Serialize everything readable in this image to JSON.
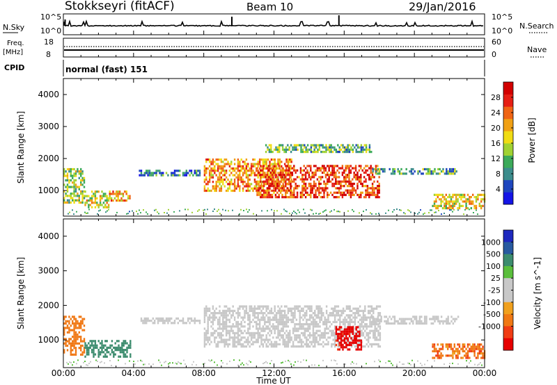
{
  "header": {
    "station": "Stokkseyri (fitACF)",
    "beam": "Beam 10",
    "date": "29/Jan/2016"
  },
  "nsky_panel": {
    "label": "N.Sky",
    "y_ticks_left": [
      "10^5",
      "10^0"
    ],
    "y_ticks_right": [
      "10^5",
      "10^0"
    ],
    "right_label": "N.Search"
  },
  "freq_panel": {
    "label_line1": "Freq.",
    "label_line2": "[MHz]",
    "y_ticks_left": [
      "18",
      "8"
    ],
    "y_ticks_right": [
      "60",
      "0"
    ],
    "right_label": "Nave"
  },
  "cpid_panel": {
    "label": "CPID",
    "mode": "normal (fast) 151"
  },
  "x_axis": {
    "ticks": [
      "00:00",
      "04:00",
      "08:00",
      "12:00",
      "16:00",
      "20:00",
      "00:00"
    ],
    "label": "Time UT"
  },
  "colors": {
    "power_scale": [
      "#1414e6",
      "#1e46be",
      "#3c8c8c",
      "#3caa5a",
      "#a0d232",
      "#f0dc14",
      "#f0a014",
      "#f06414",
      "#e61e14",
      "#d20000"
    ],
    "velocity_scale": [
      "#1e28be",
      "#285aa0",
      "#3c8c6e",
      "#5abe3c",
      "#c8c8c8",
      "#c8c8c8",
      "#f0a01e",
      "#f07814",
      "#f03c14",
      "#e60000"
    ],
    "velocity_ground": "#c8c8c8"
  },
  "chart_data": [
    {
      "type": "heatmap",
      "title": "",
      "xlabel": "",
      "ylabel": "Slant Range [km]",
      "x_ticks": [
        "00:00",
        "04:00",
        "08:00",
        "12:00",
        "16:00",
        "20:00",
        "00:00"
      ],
      "y_ticks": [
        "1000",
        "2000",
        "3000",
        "4000"
      ],
      "ylim": [
        200,
        4500
      ],
      "colorbar": {
        "label": "Power [dB]",
        "ticks": [
          "28",
          "24",
          "20",
          "16",
          "12",
          "8",
          "4"
        ]
      },
      "echo_regions": [
        {
          "t_start": 0.0,
          "t_end": 1.2,
          "r_min": 600,
          "r_max": 1700,
          "power_db": 14
        },
        {
          "t_start": 1.2,
          "t_end": 2.6,
          "r_min": 500,
          "r_max": 1000,
          "power_db": 18
        },
        {
          "t_start": 2.6,
          "t_end": 3.8,
          "r_min": 700,
          "r_max": 1000,
          "power_db": 20
        },
        {
          "t_start": 4.3,
          "t_end": 7.8,
          "r_min": 1500,
          "r_max": 1650,
          "power_db": 8
        },
        {
          "t_start": 8.0,
          "t_end": 13.0,
          "r_min": 1000,
          "r_max": 2000,
          "power_db": 22
        },
        {
          "t_start": 11.0,
          "t_end": 18.0,
          "r_min": 800,
          "r_max": 1800,
          "power_db": 26
        },
        {
          "t_start": 11.5,
          "t_end": 17.5,
          "r_min": 2200,
          "r_max": 2450,
          "power_db": 12
        },
        {
          "t_start": 17.5,
          "t_end": 22.5,
          "r_min": 1500,
          "r_max": 1700,
          "power_db": 10
        },
        {
          "t_start": 21.0,
          "t_end": 24.0,
          "r_min": 450,
          "r_max": 900,
          "power_db": 18
        }
      ]
    },
    {
      "type": "heatmap",
      "title": "",
      "xlabel": "Time UT",
      "ylabel": "Slant Range [km]",
      "x_ticks": [
        "00:00",
        "04:00",
        "08:00",
        "12:00",
        "16:00",
        "20:00",
        "00:00"
      ],
      "y_ticks": [
        "1000",
        "2000",
        "3000",
        "4000"
      ],
      "ylim": [
        200,
        4500
      ],
      "colorbar": {
        "label": "Velocity [m s^-1]",
        "ticks": [
          "1000",
          "500",
          "100",
          "25",
          "-25",
          "-100",
          "-500",
          "-1000"
        ]
      },
      "echo_regions": [
        {
          "t_start": 0.0,
          "t_end": 1.2,
          "r_min": 600,
          "r_max": 1700,
          "velocity": -200
        },
        {
          "t_start": 1.2,
          "t_end": 3.8,
          "r_min": 500,
          "r_max": 1000,
          "velocity": 150
        },
        {
          "t_start": 4.3,
          "t_end": 7.8,
          "r_min": 1500,
          "r_max": 1650,
          "velocity": 0
        },
        {
          "t_start": 8.0,
          "t_end": 18.0,
          "r_min": 800,
          "r_max": 2000,
          "velocity": 0
        },
        {
          "t_start": 15.5,
          "t_end": 17.0,
          "r_min": 700,
          "r_max": 1400,
          "velocity": -900
        },
        {
          "t_start": 17.5,
          "t_end": 22.5,
          "r_min": 1500,
          "r_max": 1700,
          "velocity": 0
        },
        {
          "t_start": 21.0,
          "t_end": 24.0,
          "r_min": 450,
          "r_max": 900,
          "velocity": -300
        }
      ]
    }
  ]
}
